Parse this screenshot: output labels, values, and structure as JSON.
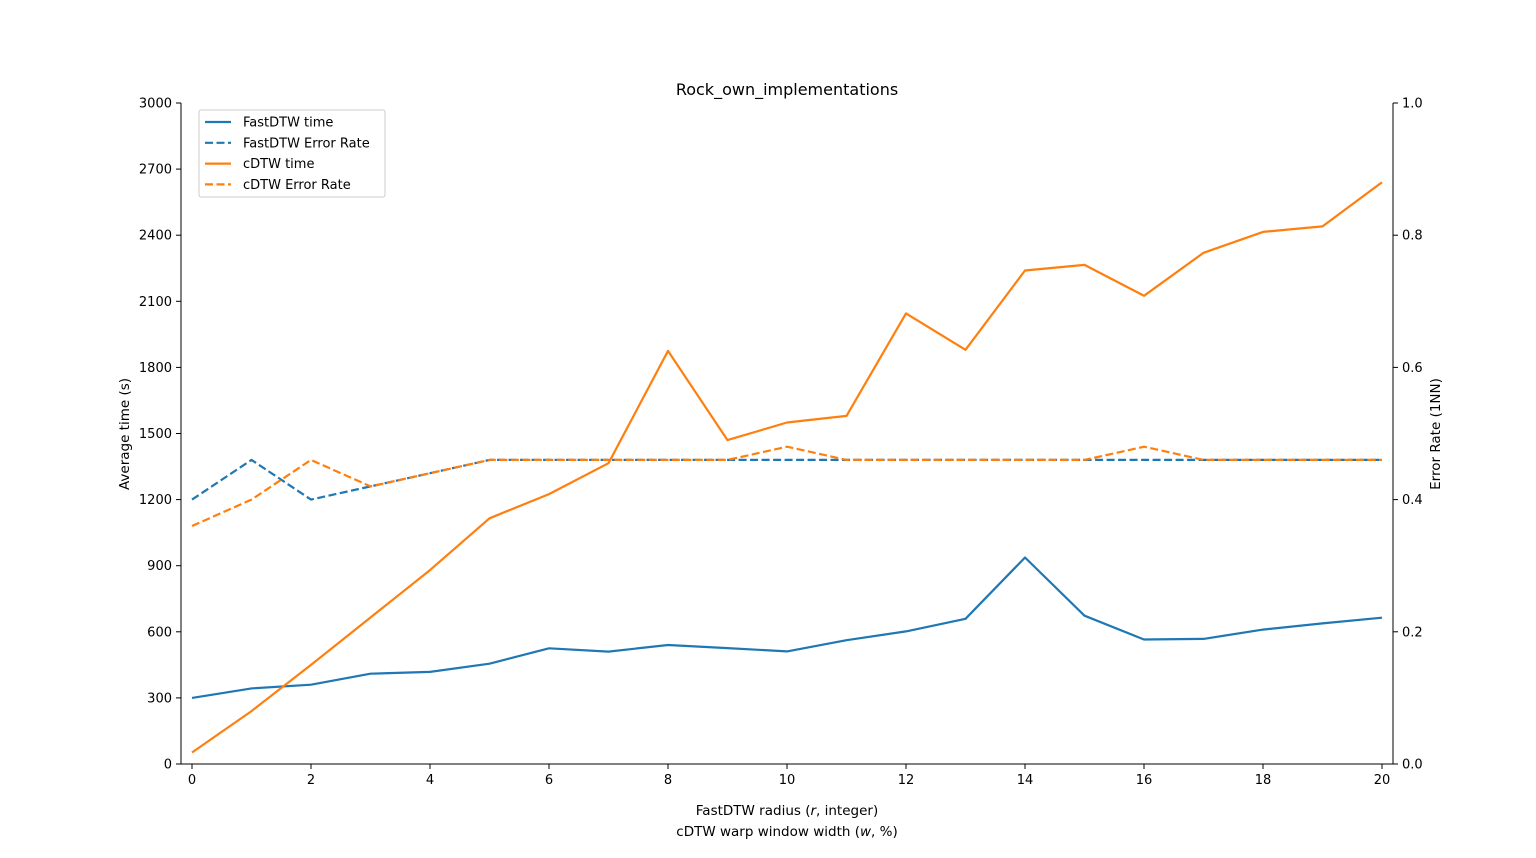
{
  "chart_data": {
    "type": "line",
    "title": "Rock_own_implementations",
    "xlabel": "FastDTW radius (r, integer)",
    "xlabel2": "cDTW warp window width (w, %)",
    "ylabel": "Average time (s)",
    "ylabel_right": "Error Rate (1NN)",
    "xlim": [
      0,
      20
    ],
    "ylim": [
      0,
      3000
    ],
    "ylim_right": [
      0,
      1.0
    ],
    "x_ticks": [
      0,
      2,
      4,
      6,
      8,
      10,
      12,
      14,
      16,
      18,
      20
    ],
    "y_ticks": [
      0,
      300,
      600,
      900,
      1200,
      1500,
      1800,
      2100,
      2400,
      2700,
      3000
    ],
    "y_ticks_right": [
      "0.0",
      "0.2",
      "0.4",
      "0.6",
      "0.8",
      "1.0"
    ],
    "grid": false,
    "legend_position": "top-left",
    "x": [
      0,
      1,
      2,
      3,
      4,
      5,
      6,
      7,
      8,
      9,
      10,
      11,
      12,
      13,
      14,
      15,
      16,
      17,
      18,
      19,
      20
    ],
    "series": [
      {
        "name": "FastDTW time",
        "axis": "left",
        "style": "solid",
        "color": "#1f77b4",
        "values": [
          300,
          343,
          360,
          410,
          418,
          455,
          525,
          510,
          540,
          526,
          511,
          562,
          602,
          659,
          937,
          673,
          565,
          568,
          610,
          638,
          664
        ]
      },
      {
        "name": "FastDTW Error Rate",
        "axis": "right",
        "style": "dashed",
        "color": "#1f77b4",
        "values": [
          0.4,
          0.46,
          0.4,
          0.42,
          0.44,
          0.46,
          0.46,
          0.46,
          0.46,
          0.46,
          0.46,
          0.46,
          0.46,
          0.46,
          0.46,
          0.46,
          0.46,
          0.46,
          0.46,
          0.46,
          0.46
        ]
      },
      {
        "name": "cDTW time",
        "axis": "left",
        "style": "solid",
        "color": "#ff7f0e",
        "values": [
          52,
          240,
          450,
          665,
          880,
          1115,
          1225,
          1365,
          1875,
          1470,
          1550,
          1580,
          2045,
          1880,
          2240,
          2265,
          2125,
          2320,
          2415,
          2440,
          2640
        ]
      },
      {
        "name": "cDTW Error Rate",
        "axis": "right",
        "style": "dashed",
        "color": "#ff7f0e",
        "values": [
          0.36,
          0.4,
          0.46,
          0.42,
          0.44,
          0.46,
          0.46,
          0.46,
          0.46,
          0.46,
          0.48,
          0.46,
          0.46,
          0.46,
          0.46,
          0.46,
          0.48,
          0.46,
          0.46,
          0.46,
          0.46
        ]
      }
    ]
  }
}
